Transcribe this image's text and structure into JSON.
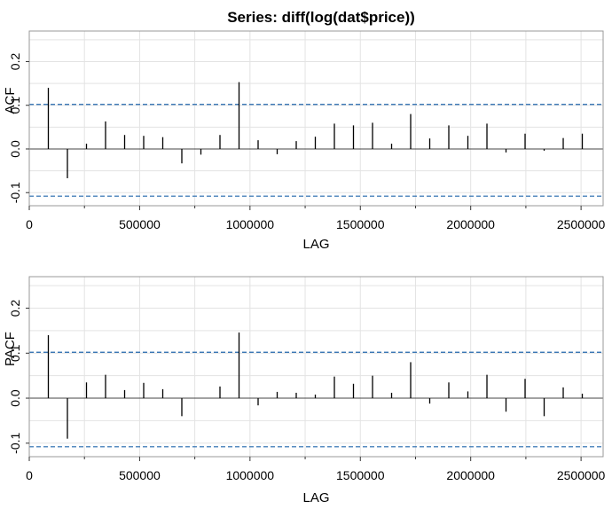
{
  "title": "Series:  diff(log(dat$price))",
  "chart_data": [
    {
      "type": "bar",
      "name": "acf-panel",
      "xlabel": "LAG",
      "ylabel": "ACF",
      "xlim": [
        0,
        2600000
      ],
      "ylim": [
        -0.13,
        0.27
      ],
      "xticks": [
        0,
        500000,
        1000000,
        1500000,
        2000000,
        2500000
      ],
      "xtick_labels": [
        "0",
        "500000",
        "1000000",
        "1500000",
        "2000000",
        "2500000"
      ],
      "yticks": [
        -0.1,
        0.0,
        0.1,
        0.2
      ],
      "ytick_labels": [
        "-0.1",
        "0.0",
        "0.1",
        "0.2"
      ],
      "ci": [
        0.102,
        -0.108
      ],
      "grid": true,
      "lags": [
        86400,
        172800,
        259200,
        345600,
        432000,
        518400,
        604800,
        691200,
        777600,
        864000,
        950400,
        1036800,
        1123200,
        1209600,
        1296000,
        1382400,
        1468800,
        1555200,
        1641600,
        1728000,
        1814400,
        1900800,
        1987200,
        2073600,
        2160000,
        2246400,
        2332800,
        2419200,
        2505600
      ],
      "values": [
        0.14,
        -0.067,
        0.012,
        0.063,
        0.032,
        0.03,
        0.027,
        -0.033,
        -0.013,
        0.032,
        0.153,
        0.02,
        -0.012,
        0.018,
        0.028,
        0.058,
        0.054,
        0.06,
        0.012,
        0.08,
        0.024,
        0.054,
        0.03,
        0.058,
        -0.008,
        0.035,
        -0.004,
        0.025,
        0.035
      ]
    },
    {
      "type": "bar",
      "name": "pacf-panel",
      "xlabel": "LAG",
      "ylabel": "PACF",
      "xlim": [
        0,
        2600000
      ],
      "ylim": [
        -0.13,
        0.27
      ],
      "xticks": [
        0,
        500000,
        1000000,
        1500000,
        2000000,
        2500000
      ],
      "xtick_labels": [
        "0",
        "500000",
        "1000000",
        "1500000",
        "2000000",
        "2500000"
      ],
      "yticks": [
        -0.1,
        0.0,
        0.1,
        0.2
      ],
      "ytick_labels": [
        "-0.1",
        "0.0",
        "0.1",
        "0.2"
      ],
      "ci": [
        0.102,
        -0.108
      ],
      "grid": true,
      "lags": [
        86400,
        172800,
        259200,
        345600,
        432000,
        518400,
        604800,
        691200,
        777600,
        864000,
        950400,
        1036800,
        1123200,
        1209600,
        1296000,
        1382400,
        1468800,
        1555200,
        1641600,
        1728000,
        1814400,
        1900800,
        1987200,
        2073600,
        2160000,
        2246400,
        2332800,
        2419200,
        2505600
      ],
      "values": [
        0.14,
        -0.09,
        0.035,
        0.052,
        0.018,
        0.034,
        0.02,
        -0.04,
        0.0,
        0.026,
        0.146,
        -0.016,
        0.014,
        0.012,
        0.008,
        0.048,
        0.032,
        0.05,
        0.012,
        0.08,
        -0.012,
        0.035,
        0.015,
        0.052,
        -0.03,
        0.043,
        -0.04,
        0.024,
        0.01
      ]
    }
  ],
  "colors": {
    "bars": "#000000",
    "ci_line": "#2166ac",
    "grid": "#e3e3e3",
    "frame": "#999999",
    "zero_line": "#444444"
  }
}
